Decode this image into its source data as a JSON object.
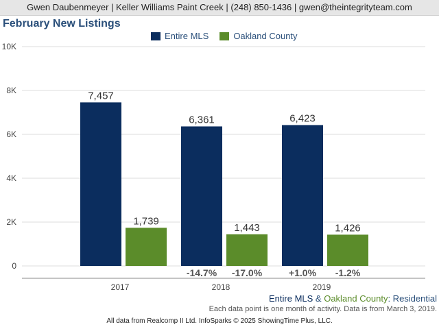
{
  "header": {
    "contact": "Gwen Daubenmeyer | Keller Williams Paint Creek | (248) 850-1436 | gwen@theintegrityteam.com"
  },
  "chart_data": {
    "type": "bar",
    "title": "February New Listings",
    "categories": [
      "2017",
      "2018",
      "2019"
    ],
    "series": [
      {
        "name": "Entire MLS",
        "color": "#0b2d5e",
        "values": [
          7457,
          6361,
          6423
        ],
        "value_labels": [
          "7,457",
          "6,361",
          "6,423"
        ],
        "change_labels": [
          "",
          "-14.7%",
          "+1.0%"
        ]
      },
      {
        "name": "Oakland County",
        "color": "#5b8c2a",
        "values": [
          1739,
          1443,
          1426
        ],
        "value_labels": [
          "1,739",
          "1,443",
          "1,426"
        ],
        "change_labels": [
          "",
          "-17.0%",
          "-1.2%"
        ]
      }
    ],
    "ylim": [
      0,
      10000
    ],
    "yticks": [
      {
        "value": 0,
        "label": "0"
      },
      {
        "value": 2000,
        "label": "2K"
      },
      {
        "value": 4000,
        "label": "4K"
      },
      {
        "value": 6000,
        "label": "6K"
      },
      {
        "value": 8000,
        "label": "8K"
      },
      {
        "value": 10000,
        "label": "10K"
      }
    ],
    "grid": true,
    "legend": "top-center"
  },
  "footer": {
    "series_a": "Entire MLS",
    "amp": " & ",
    "series_b": "Oakland County",
    "suffix": ": Residential",
    "note": "Each data point is one month of activity. Data is from March 3, 2019.",
    "credit": "All data from Realcomp II Ltd. InfoSparks © 2025 ShowingTime Plus, LLC."
  },
  "colors": {
    "title": "#2a4f7a",
    "footer_blue": "#0b2d5e",
    "footer_green": "#5b8c2a",
    "footer_suffix": "#2a4f7a"
  }
}
